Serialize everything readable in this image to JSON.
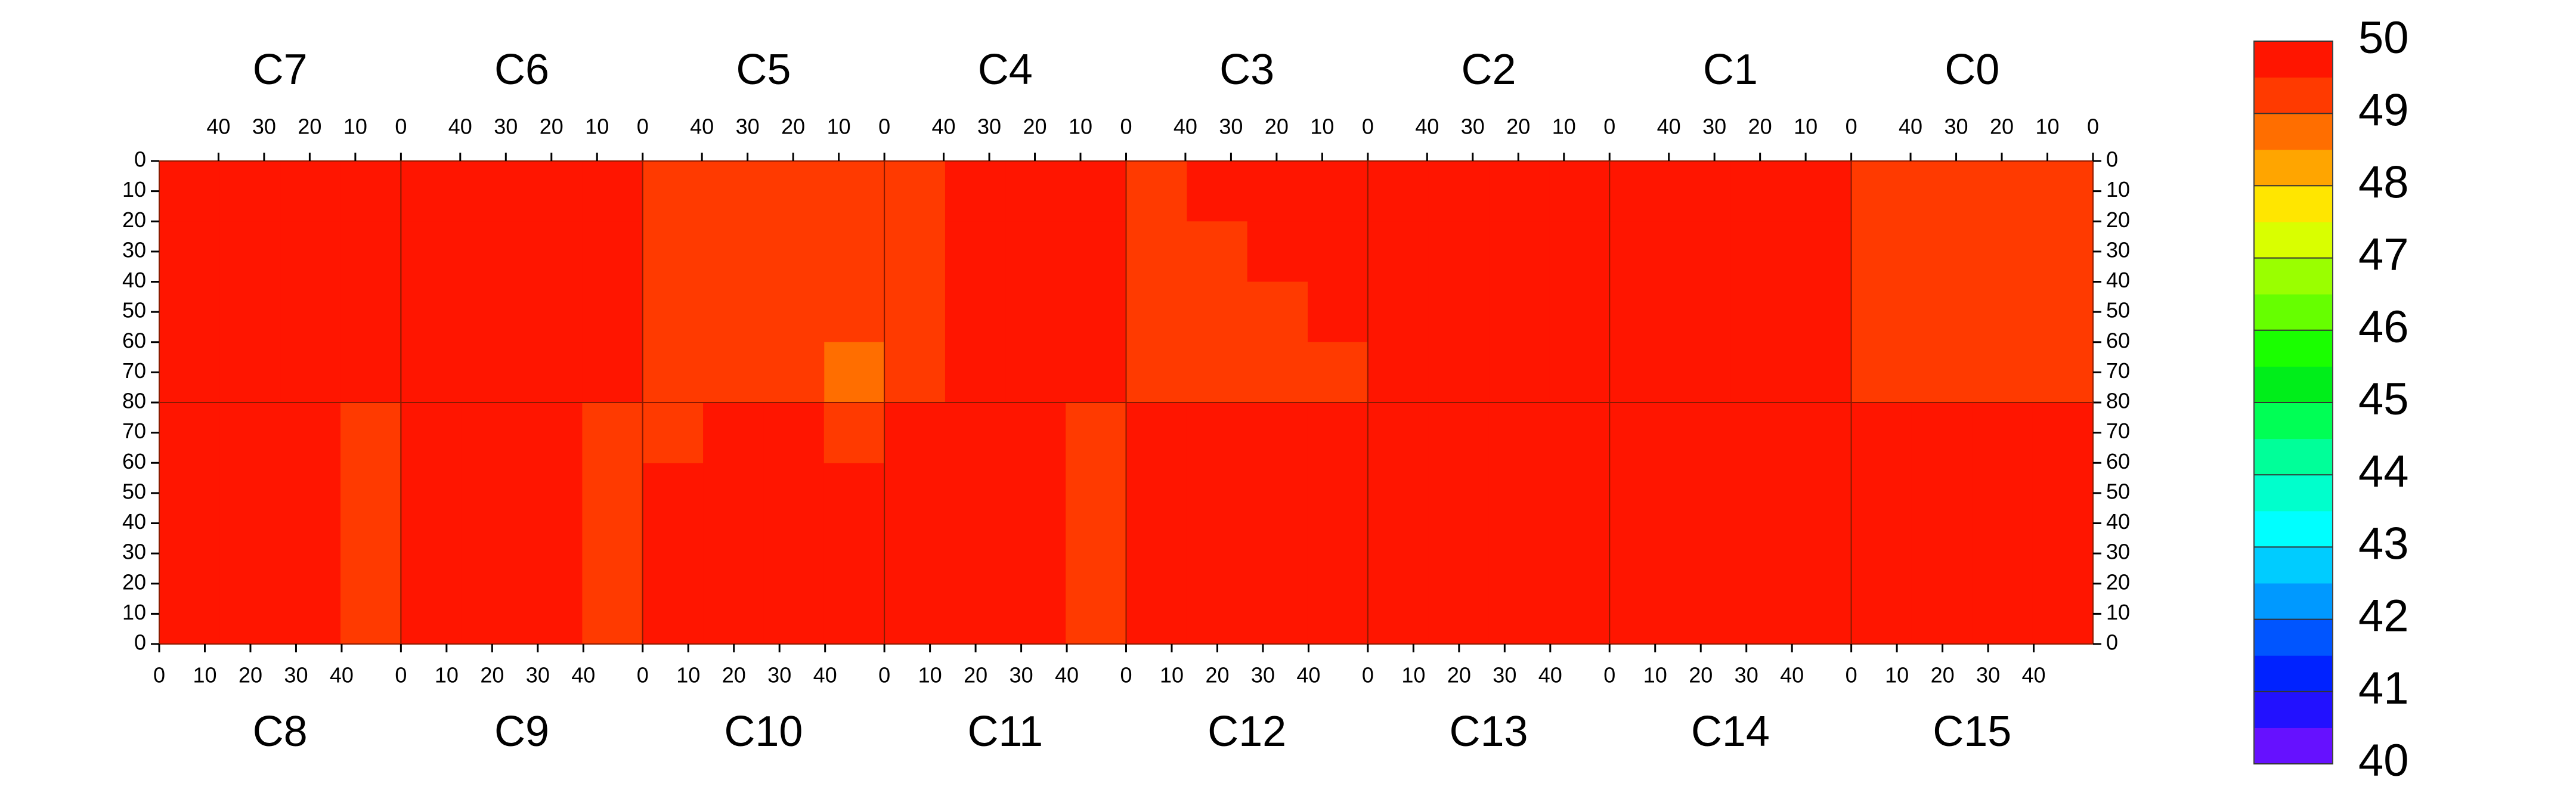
{
  "chart_data": {
    "type": "heatmap",
    "xlim": [
      0,
      53
    ],
    "ylim": [
      0,
      80
    ],
    "xticks": [
      0,
      10,
      20,
      30,
      40
    ],
    "yticks": [
      0,
      10,
      20,
      30,
      40,
      50,
      60,
      70,
      80
    ],
    "top": [
      {
        "name": "C7",
        "values": [
          [
            49.7,
            49.7,
            49.7,
            49.7
          ],
          [
            49.7,
            49.6,
            49.7,
            49.7
          ],
          [
            49.6,
            49.6,
            49.7,
            49.6
          ],
          [
            49.5,
            49.6,
            49.6,
            49.5
          ]
        ]
      },
      {
        "name": "C6",
        "values": [
          [
            49.8,
            49.8,
            49.8,
            49.8
          ],
          [
            49.8,
            49.8,
            49.8,
            49.8
          ],
          [
            49.7,
            49.8,
            49.8,
            49.8
          ],
          [
            49.6,
            49.7,
            49.7,
            49.6
          ]
        ]
      },
      {
        "name": "C5",
        "values": [
          [
            49.2,
            49.4,
            49.4,
            49.3
          ],
          [
            49.1,
            49.3,
            49.3,
            49.3
          ],
          [
            49.0,
            49.3,
            49.2,
            49.2
          ],
          [
            48.9,
            49.2,
            49.2,
            49.1
          ]
        ]
      },
      {
        "name": "C4",
        "values": [
          [
            49.7,
            49.7,
            49.6,
            49.4
          ],
          [
            49.6,
            49.6,
            49.6,
            49.3
          ],
          [
            49.6,
            49.5,
            49.5,
            49.3
          ],
          [
            49.5,
            49.5,
            49.5,
            49.3
          ]
        ]
      },
      {
        "name": "C3",
        "values": [
          [
            49.6,
            49.5,
            49.5,
            49.3
          ],
          [
            49.5,
            49.5,
            49.4,
            49.3
          ],
          [
            49.5,
            49.4,
            49.4,
            49.2
          ],
          [
            49.4,
            49.4,
            49.4,
            49.2
          ]
        ]
      },
      {
        "name": "C2",
        "values": [
          [
            49.9,
            49.9,
            49.9,
            49.7
          ],
          [
            49.9,
            49.9,
            49.9,
            49.7
          ],
          [
            49.9,
            49.9,
            49.9,
            49.7
          ],
          [
            49.9,
            49.9,
            49.9,
            49.7
          ]
        ]
      },
      {
        "name": "C1",
        "values": [
          [
            49.95,
            49.95,
            49.95,
            49.95
          ],
          [
            49.95,
            49.95,
            49.95,
            49.95
          ],
          [
            49.95,
            49.95,
            49.95,
            49.95
          ],
          [
            49.9,
            49.95,
            49.95,
            49.95
          ]
        ]
      },
      {
        "name": "C0",
        "values": [
          [
            49.4,
            49.4,
            49.4,
            49.4
          ],
          [
            49.3,
            49.4,
            49.4,
            49.4
          ],
          [
            49.3,
            49.4,
            49.4,
            49.3
          ],
          [
            49.3,
            49.3,
            49.3,
            49.3
          ]
        ]
      }
    ],
    "bottom": [
      {
        "name": "C8",
        "values": [
          [
            49.7,
            49.6,
            49.6,
            49.4
          ],
          [
            49.7,
            49.6,
            49.6,
            49.4
          ],
          [
            49.7,
            49.6,
            49.6,
            49.4
          ],
          [
            49.6,
            49.6,
            49.6,
            49.4
          ]
        ]
      },
      {
        "name": "C9",
        "values": [
          [
            49.8,
            49.7,
            49.7,
            49.4
          ],
          [
            49.8,
            49.7,
            49.7,
            49.4
          ],
          [
            49.8,
            49.7,
            49.7,
            49.4
          ],
          [
            49.7,
            49.7,
            49.7,
            49.4
          ]
        ]
      },
      {
        "name": "C10",
        "values": [
          [
            49.5,
            49.8,
            49.8,
            49.6
          ],
          [
            49.5,
            49.8,
            49.8,
            49.6
          ],
          [
            49.5,
            49.8,
            49.8,
            49.5
          ],
          [
            49.4,
            49.8,
            49.8,
            49.4
          ]
        ]
      },
      {
        "name": "C11",
        "values": [
          [
            49.6,
            49.5,
            49.5,
            49.4
          ],
          [
            49.6,
            49.5,
            49.5,
            49.4
          ],
          [
            49.5,
            49.5,
            49.5,
            49.4
          ],
          [
            49.5,
            49.5,
            49.5,
            49.4
          ]
        ]
      },
      {
        "name": "C12",
        "values": [
          [
            49.95,
            49.95,
            49.95,
            49.95
          ],
          [
            49.95,
            49.95,
            49.95,
            49.95
          ],
          [
            49.95,
            49.95,
            49.95,
            49.95
          ],
          [
            49.95,
            49.95,
            49.95,
            49.95
          ]
        ]
      },
      {
        "name": "C13",
        "values": [
          [
            49.7,
            49.8,
            49.9,
            49.9
          ],
          [
            49.8,
            49.8,
            49.9,
            49.9
          ],
          [
            49.8,
            49.7,
            49.9,
            49.9
          ],
          [
            49.7,
            49.7,
            49.8,
            49.9
          ]
        ]
      },
      {
        "name": "C14",
        "values": [
          [
            49.95,
            49.95,
            49.95,
            49.95
          ],
          [
            49.95,
            49.95,
            49.95,
            49.95
          ],
          [
            49.95,
            49.95,
            49.95,
            49.95
          ],
          [
            49.95,
            49.95,
            49.95,
            49.95
          ]
        ]
      },
      {
        "name": "C15",
        "values": [
          [
            49.9,
            49.9,
            49.9,
            49.9
          ],
          [
            49.9,
            49.9,
            49.9,
            49.9
          ],
          [
            49.9,
            49.9,
            49.9,
            49.9
          ],
          [
            49.9,
            49.9,
            49.9,
            49.9
          ]
        ]
      }
    ],
    "colorbar": {
      "range": [
        40,
        50
      ],
      "ticks": [
        40,
        41,
        42,
        43,
        44,
        45,
        46,
        47,
        48,
        49,
        50
      ],
      "colors": [
        "#6611ff",
        "#2211ff",
        "#0022ff",
        "#0055ff",
        "#0099ff",
        "#00ccff",
        "#00ffff",
        "#00ffcc",
        "#00ff99",
        "#00ff55",
        "#00ee1a",
        "#1aff00",
        "#66ff00",
        "#9aff00",
        "#d9ff00",
        "#ffe600",
        "#ffa500",
        "#ff6e00",
        "#ff3a00",
        "#ff1500"
      ]
    }
  }
}
